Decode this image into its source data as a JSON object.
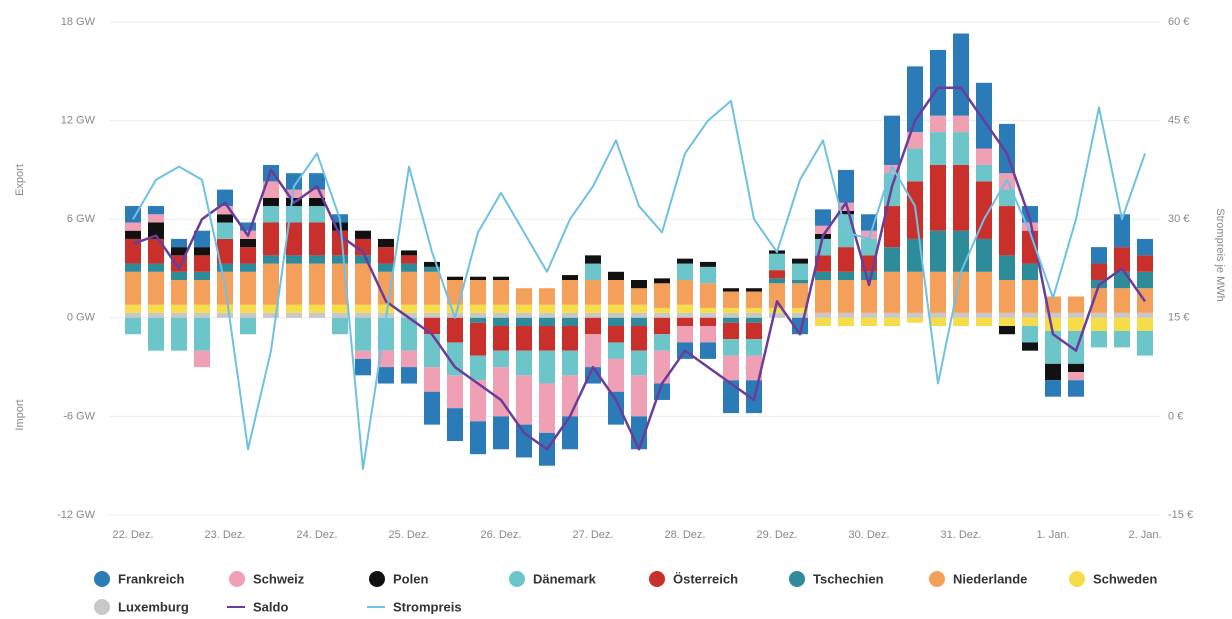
{
  "chart_data": {
    "type": "bar",
    "stacked": true,
    "y_label_top": "Export",
    "y_label_bottom": "Import",
    "y2_label": "Strompreis je MWh",
    "categories": [
      "22. Dez.",
      null,
      null,
      null,
      "23. Dez.",
      null,
      null,
      null,
      "24. Dez.",
      null,
      null,
      null,
      "25. Dez.",
      null,
      null,
      null,
      "26. Dez.",
      null,
      null,
      null,
      "27. Dez.",
      null,
      null,
      null,
      "28. Dez.",
      null,
      null,
      null,
      "29. Dez.",
      null,
      null,
      null,
      "30. Dez.",
      null,
      null,
      null,
      "31. Dez.",
      null,
      null,
      null,
      "1. Jan.",
      null,
      null,
      null,
      "2. Jan."
    ],
    "ylim": [
      -12,
      18
    ],
    "yticks": [
      {
        "value": -12,
        "label": "-12 GW"
      },
      {
        "value": -6,
        "label": "-6 GW"
      },
      {
        "value": 0,
        "label": "0 GW"
      },
      {
        "value": 6,
        "label": "6 GW"
      },
      {
        "value": 12,
        "label": "12 GW"
      },
      {
        "value": 18,
        "label": "18 GW"
      }
    ],
    "y2lim": [
      -15,
      60
    ],
    "y2ticks": [
      {
        "value": -15,
        "label": "-15 €"
      },
      {
        "value": 0,
        "label": "0 €"
      },
      {
        "value": 15,
        "label": "15 €"
      },
      {
        "value": 30,
        "label": "30 €"
      },
      {
        "value": 45,
        "label": "45 €"
      },
      {
        "value": 60,
        "label": "60 €"
      }
    ],
    "grid": true,
    "legend": "bottom",
    "series": [
      {
        "name": "Frankreich",
        "color": "#2b7bb9",
        "values": [
          1,
          0.5,
          0.5,
          1,
          1,
          0.5,
          1,
          1,
          1,
          0.5,
          -1,
          -1,
          -1,
          -2,
          -2,
          -2,
          -2,
          -2,
          -2,
          -2,
          -1,
          -2,
          -2,
          -1,
          -1,
          -1,
          -2,
          -2,
          0,
          -1,
          1,
          2,
          1,
          3,
          4,
          4,
          5,
          4,
          3,
          1,
          -1,
          -1,
          1,
          2,
          1
        ]
      },
      {
        "name": "Schweiz",
        "color": "#f0a0b4",
        "values": [
          0.5,
          0.5,
          0,
          -1,
          0.5,
          0.5,
          1,
          0.5,
          0.5,
          0,
          -0.5,
          -1,
          -1,
          -1.5,
          -2,
          -2.5,
          -3,
          -3,
          -3,
          -2.5,
          -2,
          -2,
          -2.5,
          -2,
          -1,
          -1,
          -1.5,
          -1.5,
          0,
          0,
          0.5,
          0.5,
          0.5,
          0.5,
          1,
          1,
          1,
          1,
          1,
          0.5,
          0,
          -0.5,
          0,
          0,
          0
        ]
      },
      {
        "name": "Polen",
        "color": "#111111",
        "values": [
          0.5,
          1,
          0.5,
          0.5,
          0.5,
          0.5,
          0.5,
          0.5,
          0.5,
          0.5,
          0.5,
          0.5,
          0.3,
          0.3,
          0.2,
          0.2,
          0.2,
          0,
          0,
          0.3,
          0.5,
          0.5,
          0.5,
          0.3,
          0.3,
          0.3,
          0.2,
          0.2,
          0.2,
          0.3,
          0.3,
          0.2,
          0,
          0,
          0,
          0,
          0,
          0,
          -0.5,
          -0.5,
          -1,
          -0.5,
          0,
          0,
          0
        ]
      },
      {
        "name": "Dänemark",
        "color": "#6cc5c9",
        "values": [
          -1,
          -2,
          -2,
          -2,
          1,
          -1,
          1,
          1,
          1,
          -1,
          -2,
          -2,
          -2,
          -2,
          -2,
          -1.5,
          -1,
          -1.5,
          -2,
          -1.5,
          1,
          -1,
          -1.5,
          -1,
          1,
          1,
          -1,
          -1,
          1,
          1,
          1,
          2,
          1,
          2,
          2,
          2,
          2,
          1,
          1,
          -1,
          -2,
          -2,
          -1,
          -1,
          -1.5
        ]
      },
      {
        "name": "Österreich",
        "color": "#c9302c",
        "values": [
          1.5,
          1.5,
          1,
          1,
          1.5,
          1,
          2,
          2,
          2,
          1.5,
          1,
          1,
          0.5,
          -1,
          -1.5,
          -2,
          -1.5,
          -1.5,
          -1.5,
          -1.5,
          -1,
          -1,
          -1.5,
          -1,
          -0.5,
          -0.5,
          -1,
          -1,
          0.5,
          0,
          1,
          1.5,
          1,
          2.5,
          3.5,
          4,
          4,
          3.5,
          3,
          2,
          0,
          0,
          1,
          1.5,
          1
        ]
      },
      {
        "name": "Tschechien",
        "color": "#2e8b9a",
        "values": [
          0.5,
          0.5,
          0.5,
          0.5,
          0.5,
          0.5,
          0.5,
          0.5,
          0.5,
          0.5,
          0.5,
          0.5,
          0.5,
          0.3,
          0,
          -0.3,
          -0.5,
          -0.5,
          -0.5,
          -0.5,
          0,
          -0.5,
          -0.5,
          0,
          0,
          0,
          -0.3,
          -0.3,
          0.3,
          0.2,
          0.5,
          0.5,
          0.5,
          1.5,
          2,
          2.5,
          2.5,
          2,
          1.5,
          1,
          0,
          0,
          0.5,
          1,
          1
        ]
      },
      {
        "name": "Niederlande",
        "color": "#f5a05a",
        "values": [
          2,
          2,
          1.5,
          1.5,
          2,
          2,
          2.5,
          2.5,
          2.5,
          2.5,
          2.5,
          2,
          2,
          2,
          1.5,
          1.5,
          1.5,
          1,
          1,
          1.5,
          1.5,
          1.5,
          1,
          1.5,
          1.5,
          1.5,
          1,
          1,
          1.5,
          1.5,
          2,
          2,
          2,
          2.5,
          2.5,
          2.5,
          2.5,
          2.5,
          2,
          2,
          1,
          1,
          1.5,
          1.5,
          1.5
        ]
      },
      {
        "name": "Schweden",
        "color": "#f7dc4a",
        "values": [
          0.5,
          0.5,
          0.5,
          0.5,
          0.5,
          0.5,
          0.5,
          0.5,
          0.5,
          0.5,
          0.5,
          0.5,
          0.5,
          0.5,
          0.5,
          0.5,
          0.5,
          0.5,
          0.5,
          0.5,
          0.5,
          0.5,
          0.5,
          0.3,
          0.5,
          0.3,
          0.3,
          0.3,
          0.3,
          0.3,
          -0.5,
          -0.5,
          -0.5,
          -0.5,
          -0.3,
          -0.5,
          -0.5,
          -0.5,
          -0.5,
          -0.5,
          -0.8,
          -0.8,
          -0.8,
          -0.8,
          -0.8
        ]
      },
      {
        "name": "Luxemburg",
        "color": "#c8c8c8",
        "values": [
          0.3,
          0.3,
          0.3,
          0.3,
          0.3,
          0.3,
          0.3,
          0.3,
          0.3,
          0.3,
          0.3,
          0.3,
          0.3,
          0.3,
          0.3,
          0.3,
          0.3,
          0.3,
          0.3,
          0.3,
          0.3,
          0.3,
          0.3,
          0.3,
          0.3,
          0.3,
          0.3,
          0.3,
          0.3,
          0.3,
          0.3,
          0.3,
          0.3,
          0.3,
          0.3,
          0.3,
          0.3,
          0.3,
          0.3,
          0.3,
          0.3,
          0.3,
          0.3,
          0.3,
          0.3
        ]
      },
      {
        "name": "Saldo",
        "color": "#6a3d9a",
        "type": "line",
        "values": [
          4.5,
          5,
          3,
          6,
          7,
          5,
          9,
          7,
          8,
          5,
          4,
          1,
          0,
          -1,
          -3,
          -4,
          -5,
          -7,
          -8,
          -6,
          -3,
          -5,
          -8,
          -4,
          -2,
          -3,
          -4,
          -5,
          1,
          -1,
          5,
          7,
          2,
          8,
          12,
          14,
          14,
          12,
          10,
          6,
          -1,
          -2,
          2,
          3,
          1
        ]
      },
      {
        "name": "Strompreis",
        "color": "#6ec1e4",
        "type": "line",
        "axis": "y2",
        "values": [
          30,
          36,
          38,
          36,
          20,
          -5,
          10,
          35,
          40,
          30,
          -8,
          15,
          38,
          25,
          15,
          28,
          34,
          28,
          22,
          30,
          35,
          42,
          32,
          28,
          40,
          45,
          48,
          30,
          25,
          36,
          42,
          28,
          27,
          38,
          32,
          5,
          22,
          30,
          36,
          28,
          18,
          30,
          47,
          30,
          40
        ]
      }
    ]
  }
}
